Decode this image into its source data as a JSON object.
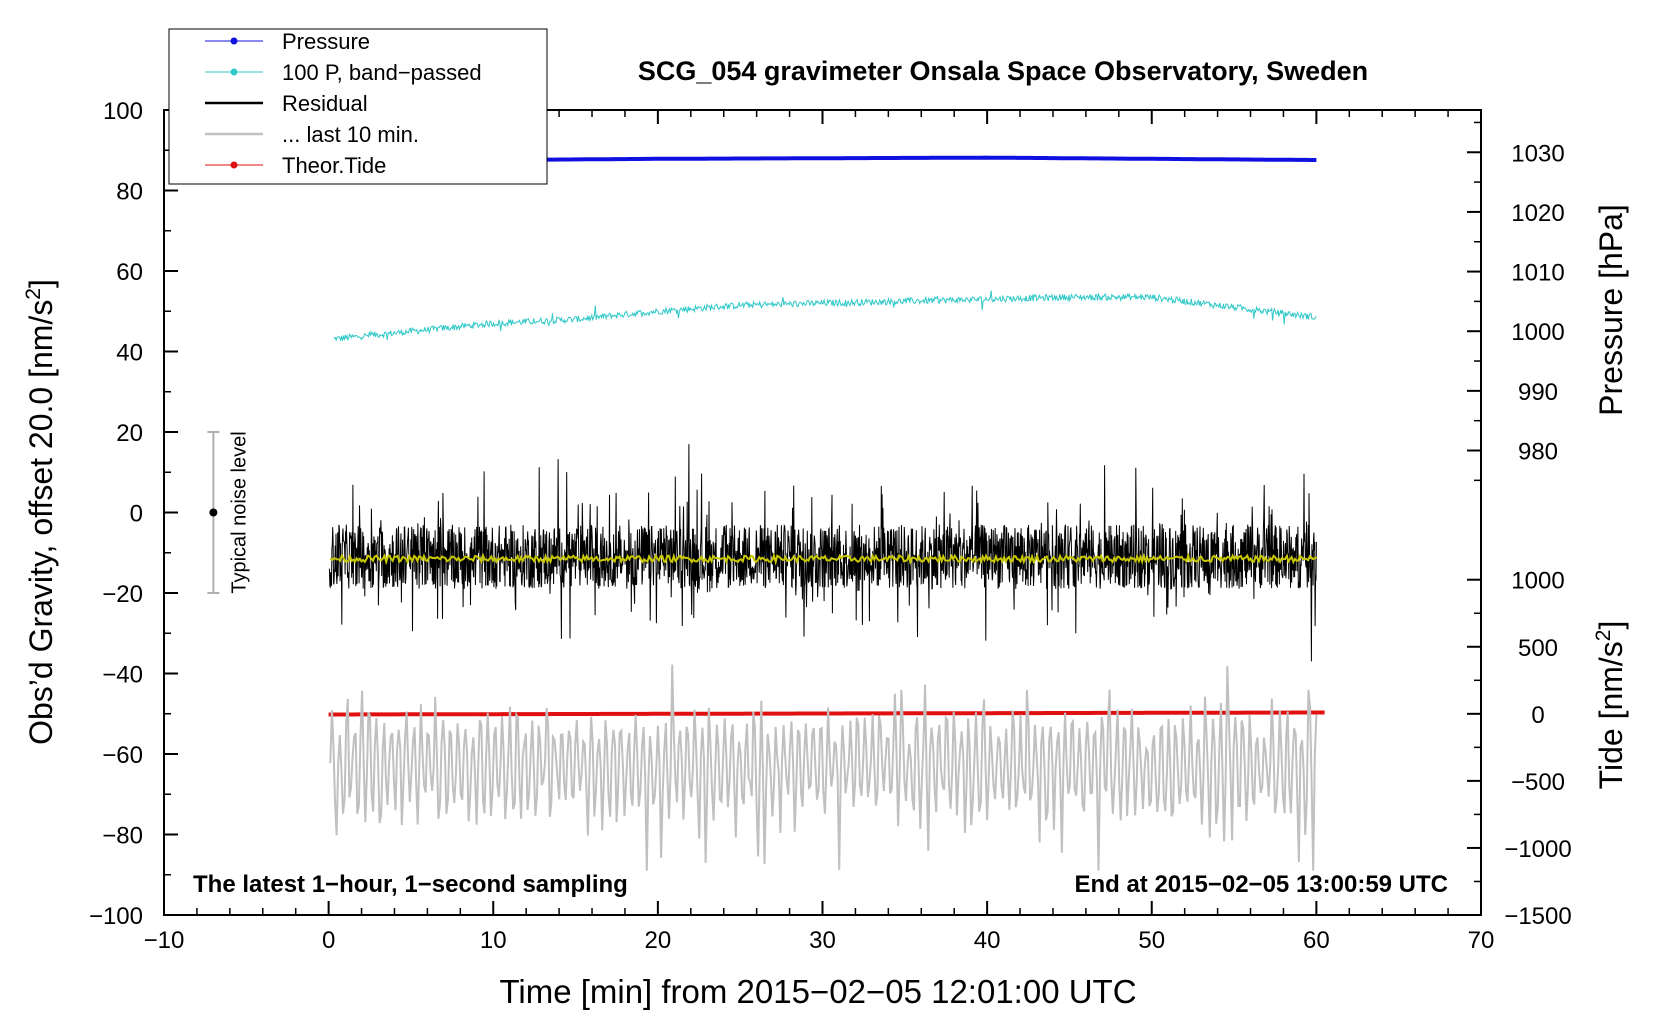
{
  "chart_data": {
    "type": "line",
    "title": "SCG_054 gravimeter Onsala Space Observatory, Sweden",
    "xlabel": "Time [min] from 2015−02−05 12:01:00 UTC",
    "ylabel_left": "Obs’d Gravity, offset 20.0 [nm/s",
    "ylabel_left_sup": "2",
    "ylabel_left_close": "]",
    "ylabel_pressure": "Pressure [hPa]",
    "ylabel_tide": "Tide [nm/s",
    "ylabel_tide_sup": "2",
    "ylabel_tide_close": "]",
    "xlim": [
      -10,
      70
    ],
    "ylim": [
      -100,
      100
    ],
    "x_ticks": [
      -10,
      0,
      10,
      20,
      30,
      40,
      50,
      60,
      70
    ],
    "x_tick_labels": [
      "−10",
      "0",
      "10",
      "20",
      "30",
      "40",
      "50",
      "60",
      "70"
    ],
    "y_ticks": [
      -100,
      -80,
      -60,
      -40,
      -20,
      0,
      20,
      40,
      60,
      80,
      100
    ],
    "y_tick_labels": [
      "−100",
      "−80",
      "−60",
      "−40",
      "−20",
      "0",
      "20",
      "40",
      "60",
      "80",
      "100"
    ],
    "pressure_axis": {
      "map": {
        "value": [
          980,
          1030
        ],
        "left_equiv": [
          15.4,
          89.5
        ]
      },
      "ticks": [
        980,
        990,
        1000,
        1010,
        1020,
        1030
      ],
      "tick_labels": [
        "980",
        "990",
        "1000",
        "1010",
        "1020",
        "1030"
      ]
    },
    "tide_axis": {
      "map": {
        "value": [
          -1500,
          1000
        ],
        "left_equiv": [
          -100,
          -16.7
        ]
      },
      "ticks": [
        -1500,
        -1000,
        -500,
        0,
        500,
        1000
      ],
      "tick_labels": [
        "−1500",
        "−1000",
        "−500",
        "0",
        "500",
        "1000"
      ]
    },
    "legend": {
      "placement": "top-left",
      "entries": [
        {
          "label": "Pressure",
          "color": "#1010e0",
          "marker": true
        },
        {
          "label": "100 P, band−passed",
          "color": "#30c8c8",
          "marker": true
        },
        {
          "label": "Residual",
          "color": "#000000",
          "marker": false
        },
        {
          "label": "... last 10 min.",
          "color": "#c0c0c0",
          "marker": false
        },
        {
          "label": "Theor.Tide",
          "color": "#e01010",
          "marker": true
        }
      ]
    },
    "noise_bar": {
      "x": -7,
      "y": 0,
      "low": -20,
      "high": 20,
      "label": "Typical noise level"
    },
    "annotations": {
      "left": "The latest 1−hour, 1−second sampling",
      "right": "End at 2015−02−05 13:00:59 UTC"
    },
    "series": [
      {
        "name": "Pressure",
        "axis": "pressure",
        "color": "#1010e0",
        "x": [
          0,
          10,
          20,
          30,
          40,
          50,
          60
        ],
        "values": [
          1028.6,
          1028.7,
          1028.9,
          1029.0,
          1029.1,
          1028.9,
          1028.7
        ]
      },
      {
        "name": "100 P, band−passed",
        "axis": "left",
        "color": "#30c8c8",
        "x": [
          0,
          5,
          10,
          15,
          20,
          25,
          30,
          35,
          40,
          45,
          50,
          55,
          60
        ],
        "values": [
          43,
          45,
          47,
          48,
          50,
          51.5,
          52,
          52.5,
          53,
          53.5,
          53.5,
          51,
          48.5
        ]
      },
      {
        "name": "Residual",
        "axis": "left",
        "color": "#000000",
        "x": [
          0,
          60
        ],
        "values": [
          -11,
          -11
        ],
        "spread": [
          -37,
          17
        ]
      },
      {
        "name": "Residual mean",
        "axis": "left",
        "color": "#c8c800",
        "x": [
          0,
          60
        ],
        "values": [
          -11.5,
          -11.5
        ]
      },
      {
        "name": "... last 10 min.",
        "axis": "left",
        "color": "#c0c0c0",
        "x": [
          0,
          60
        ],
        "values": [
          -63,
          -63
        ],
        "spread": [
          -89,
          -34
        ]
      },
      {
        "name": "Theor.Tide",
        "axis": "tide",
        "color": "#e01010",
        "x": [
          0,
          20,
          40,
          60.5
        ],
        "values": [
          -5,
          0,
          5,
          10
        ]
      }
    ],
    "grid": false
  }
}
